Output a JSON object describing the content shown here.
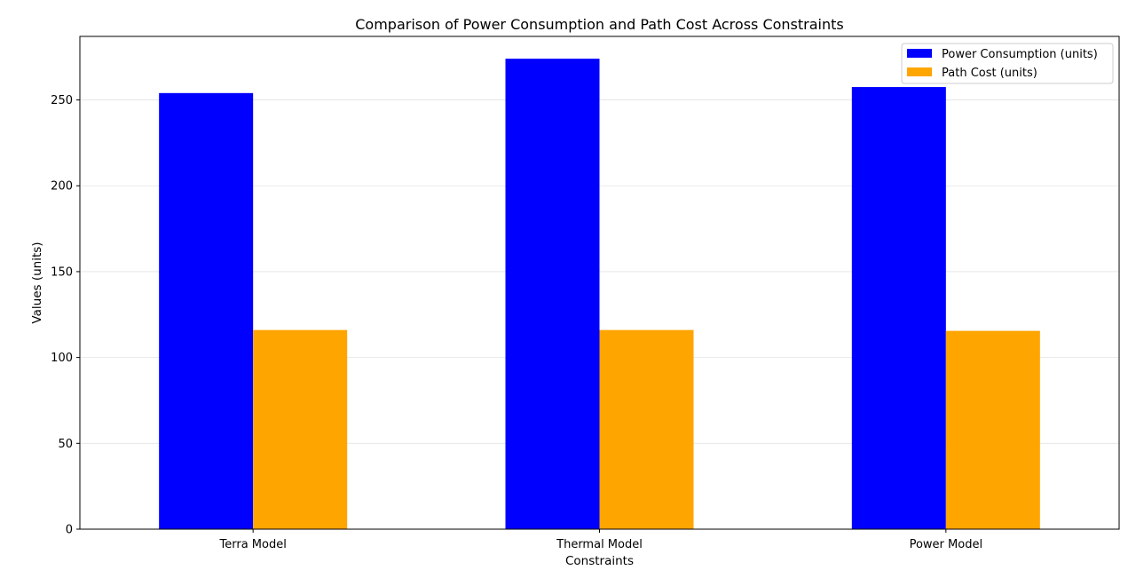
{
  "chart_data": {
    "type": "bar",
    "title": "Comparison of Power Consumption and Path Cost Across Constraints",
    "xlabel": "Constraints",
    "ylabel": "Values (units)",
    "categories": [
      "Terra Model",
      "Thermal Model",
      "Power Model"
    ],
    "series": [
      {
        "name": "Power Consumption (units)",
        "values": [
          254,
          274,
          257.5
        ],
        "color": "#0000ff"
      },
      {
        "name": "Path Cost (units)",
        "values": [
          116,
          116,
          115.5
        ],
        "color": "#ffa500"
      }
    ],
    "ylim": [
      0,
      287
    ],
    "yticks": [
      0,
      50,
      100,
      150,
      200,
      250
    ],
    "grid": "y",
    "legend_position": "top-right"
  }
}
